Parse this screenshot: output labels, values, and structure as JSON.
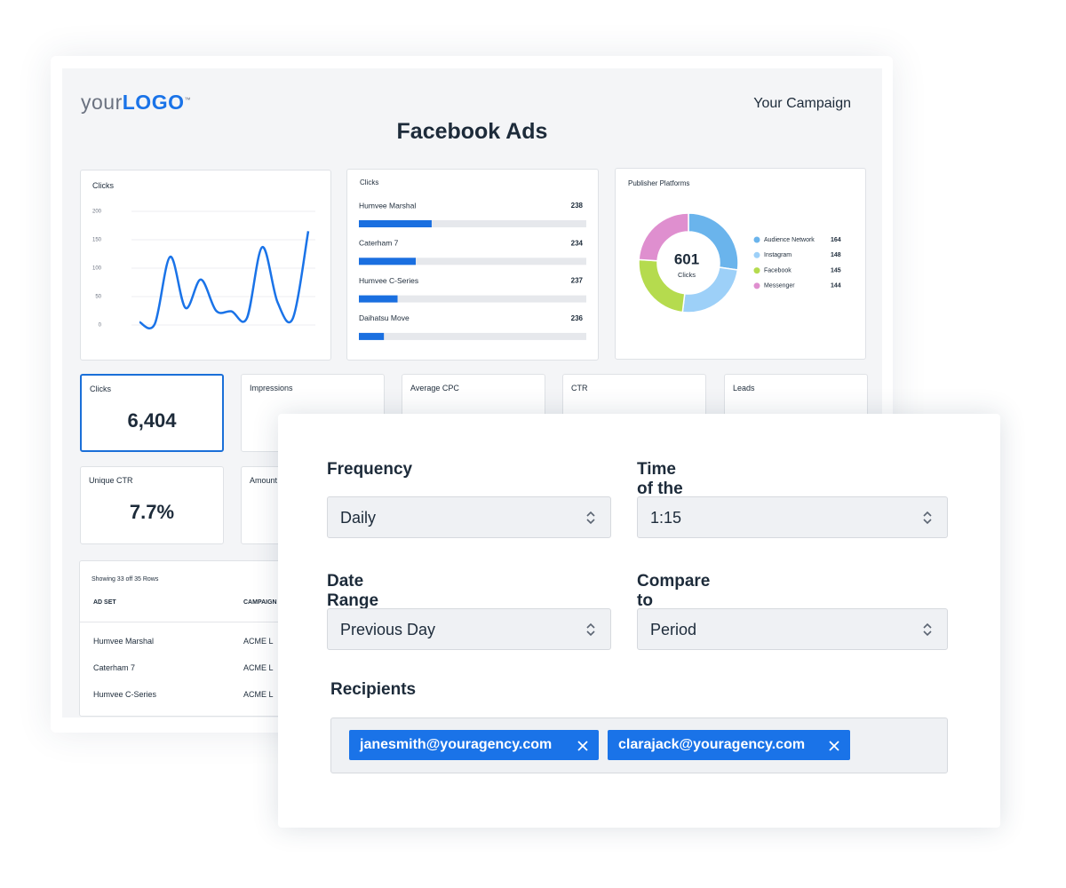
{
  "header": {
    "logo": {
      "prefix": "your",
      "brand": "LOGO",
      "mark": "™"
    },
    "campaign": "Your Campaign",
    "title": "Facebook Ads"
  },
  "line_chart": {
    "type": "line",
    "title": "Clicks",
    "values": [
      5,
      2,
      120,
      30,
      80,
      25,
      24,
      12,
      137,
      40,
      12,
      165
    ],
    "ylim": [
      0,
      200
    ],
    "yticks": [
      0,
      50,
      100,
      150,
      200
    ],
    "color": "#1a73e8",
    "grid": true
  },
  "bar_list": {
    "title": "Clicks",
    "color": "#1a6fe0",
    "track_color": "#e6e8ec",
    "progress_lim": [
      0,
      100
    ],
    "items": [
      {
        "name": "Humvee Marshal",
        "value": 238,
        "progress": 32
      },
      {
        "name": "Caterham 7",
        "value": 234,
        "progress": 25
      },
      {
        "name": "Humvee C-Series",
        "value": 237,
        "progress": 17
      },
      {
        "name": "Daihatsu Move",
        "value": 236,
        "progress": 11
      }
    ]
  },
  "donut": {
    "type": "pie",
    "title": "Publisher Platforms",
    "total": 601,
    "total_label": "Clicks",
    "categories": [
      "Audience Network",
      "Instagram",
      "Facebook",
      "Messenger"
    ],
    "values": [
      164,
      148,
      145,
      144
    ],
    "colors": [
      "#6ab4ec",
      "#9dd0f8",
      "#b5db4e",
      "#df8fcf"
    ]
  },
  "kpis": [
    {
      "label": "Clicks",
      "value": "6,404"
    },
    {
      "label": "Impressions"
    },
    {
      "label": "Average CPC"
    },
    {
      "label": "CTR"
    },
    {
      "label": "Leads"
    },
    {
      "label": "Unique CTR",
      "value": "7.7%"
    },
    {
      "label": "Amount"
    }
  ],
  "table": {
    "caption": "Showing 33 off 35 Rows",
    "columns": [
      "AD SET",
      "CAMPAIGN"
    ],
    "rows": [
      [
        "Humvee Marshal",
        "ACME L"
      ],
      [
        "Caterham 7",
        "ACME L"
      ],
      [
        "Humvee C-Series",
        "ACME L"
      ]
    ]
  },
  "form": {
    "fields": [
      {
        "label": "Frequency",
        "value": "Daily"
      },
      {
        "label": "Time of the Day (AEDT)",
        "value": "1:15"
      },
      {
        "label": "Date Range",
        "value": "Previous Day"
      },
      {
        "label": "Compare to Previous",
        "value": "Period"
      }
    ],
    "recipients": {
      "label": "Recipients",
      "emails": [
        "janesmith@youragency.com",
        "clarajack@youragency.com"
      ]
    }
  }
}
